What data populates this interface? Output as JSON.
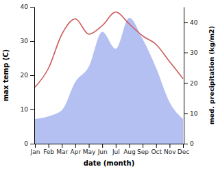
{
  "chart_data": {
    "type": "line",
    "x_label": "date (month)",
    "y_label": "max temp (C)",
    "y2_label": "med. precipitation (kg/m2)",
    "categories": [
      "Jan",
      "Feb",
      "Mar",
      "Apr",
      "May",
      "Jun",
      "Jul",
      "Aug",
      "Sep",
      "Oct",
      "Nov",
      "Dec"
    ],
    "series": [
      {
        "type": "line",
        "axis": "y",
        "color": "#cd5c5c",
        "values": [
          16.5,
          22,
          32,
          36.5,
          32,
          34.5,
          38.5,
          35,
          31.5,
          29,
          24,
          19
        ]
      },
      {
        "type": "area",
        "axis": "y2",
        "color": "#b4c0f2",
        "values": [
          8.1,
          9,
          11,
          20.3,
          25.3,
          36.8,
          31.2,
          41.4,
          34.4,
          24.9,
          13.6,
          8.1
        ]
      }
    ],
    "ylim": [
      0,
      40
    ],
    "yticks": [
      0,
      10,
      20,
      30,
      40
    ],
    "y2lim": [
      0,
      45
    ],
    "y2ticks": [
      0,
      10,
      20,
      30,
      40
    ],
    "grid": false
  }
}
